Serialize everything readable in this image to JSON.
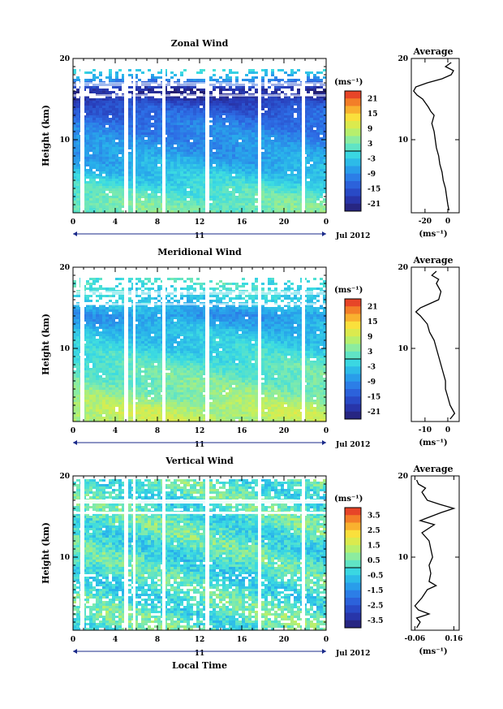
{
  "figure": {
    "x_axis_title": "Local Time",
    "date_label": "Jul 2012",
    "day_label": "11",
    "y_axis_title": "Height (km)",
    "unit_label": "(ms⁻¹)",
    "average_title": "Average"
  },
  "chart_data": [
    {
      "type": "heatmap",
      "title": "Zonal Wind",
      "xlabel": "Local Time",
      "ylabel": "Height (km)",
      "x_ticks": [
        "0",
        "4",
        "8",
        "12",
        "16",
        "20",
        "0"
      ],
      "y_ticks": [
        "20",
        "10"
      ],
      "xlim": [
        0,
        24
      ],
      "ylim": [
        1,
        20
      ],
      "colorbar": {
        "label": "(ms⁻¹)",
        "ticks": [
          "21",
          "15",
          "9",
          "3",
          "-3",
          "-9",
          "-15",
          "-21"
        ],
        "range": [
          -24,
          24
        ]
      },
      "field_summary": [
        {
          "height_km": 2,
          "value": 3
        },
        {
          "height_km": 4,
          "value": 0
        },
        {
          "height_km": 6,
          "value": -4
        },
        {
          "height_km": 8,
          "value": -7
        },
        {
          "height_km": 10,
          "value": -9
        },
        {
          "height_km": 12,
          "value": -11
        },
        {
          "height_km": 14,
          "value": -15
        },
        {
          "height_km": 16,
          "value": -22
        },
        {
          "height_km": 17.5,
          "value": -8
        },
        {
          "height_km": 19,
          "value": 2
        }
      ],
      "average_profile": {
        "xlabel": "(ms⁻¹)",
        "x_ticks": [
          "-20",
          "0"
        ],
        "xlim": [
          -32,
          10
        ],
        "y_ticks": [
          "20",
          "10"
        ],
        "points": [
          {
            "height_km": 1.3,
            "value": 1
          },
          {
            "height_km": 2,
            "value": 0
          },
          {
            "height_km": 3,
            "value": -1
          },
          {
            "height_km": 4,
            "value": -2
          },
          {
            "height_km": 5,
            "value": -4
          },
          {
            "height_km": 6,
            "value": -5
          },
          {
            "height_km": 7,
            "value": -7
          },
          {
            "height_km": 8,
            "value": -8
          },
          {
            "height_km": 9,
            "value": -10
          },
          {
            "height_km": 10,
            "value": -11
          },
          {
            "height_km": 11,
            "value": -12
          },
          {
            "height_km": 12,
            "value": -14
          },
          {
            "height_km": 13,
            "value": -12
          },
          {
            "height_km": 13.5,
            "value": -15
          },
          {
            "height_km": 14,
            "value": -17
          },
          {
            "height_km": 15,
            "value": -22
          },
          {
            "height_km": 15.5,
            "value": -27
          },
          {
            "height_km": 16,
            "value": -30
          },
          {
            "height_km": 16.5,
            "value": -28
          },
          {
            "height_km": 17,
            "value": -18
          },
          {
            "height_km": 17.5,
            "value": -5
          },
          {
            "height_km": 18,
            "value": 3
          },
          {
            "height_km": 18.5,
            "value": 5
          },
          {
            "height_km": 19,
            "value": -2
          },
          {
            "height_km": 19.5,
            "value": 3
          }
        ]
      }
    },
    {
      "type": "heatmap",
      "title": "Meridional Wind",
      "xlabel": "Local Time",
      "ylabel": "Height (km)",
      "x_ticks": [
        "0",
        "4",
        "8",
        "12",
        "16",
        "20",
        "0"
      ],
      "y_ticks": [
        "20",
        "10"
      ],
      "xlim": [
        0,
        24
      ],
      "ylim": [
        1,
        20
      ],
      "colorbar": {
        "label": "(ms⁻¹)",
        "ticks": [
          "21",
          "15",
          "9",
          "3",
          "-3",
          "-9",
          "-15",
          "-21"
        ],
        "range": [
          -24,
          24
        ]
      },
      "field_summary": [
        {
          "height_km": 2,
          "value": 8
        },
        {
          "height_km": 3,
          "value": 7
        },
        {
          "height_km": 4,
          "value": 5
        },
        {
          "height_km": 6,
          "value": 3
        },
        {
          "height_km": 8,
          "value": 1
        },
        {
          "height_km": 10,
          "value": -2
        },
        {
          "height_km": 12,
          "value": -4
        },
        {
          "height_km": 14,
          "value": -8
        },
        {
          "height_km": 16,
          "value": -3
        },
        {
          "height_km": 18,
          "value": 0
        },
        {
          "height_km": 19,
          "value": 1
        }
      ],
      "average_profile": {
        "xlabel": "(ms⁻¹)",
        "x_ticks": [
          "-10",
          "0"
        ],
        "xlim": [
          -16,
          5
        ],
        "y_ticks": [
          "20",
          "10"
        ],
        "points": [
          {
            "height_km": 1.3,
            "value": 1
          },
          {
            "height_km": 2,
            "value": 3
          },
          {
            "height_km": 2.5,
            "value": 2
          },
          {
            "height_km": 3,
            "value": 1
          },
          {
            "height_km": 4,
            "value": 0
          },
          {
            "height_km": 5,
            "value": -1
          },
          {
            "height_km": 6,
            "value": -1
          },
          {
            "height_km": 7,
            "value": -2
          },
          {
            "height_km": 8,
            "value": -3
          },
          {
            "height_km": 9,
            "value": -4
          },
          {
            "height_km": 10,
            "value": -5
          },
          {
            "height_km": 11,
            "value": -6
          },
          {
            "height_km": 12,
            "value": -8
          },
          {
            "height_km": 13,
            "value": -9
          },
          {
            "height_km": 14,
            "value": -12
          },
          {
            "height_km": 14.5,
            "value": -14
          },
          {
            "height_km": 15,
            "value": -12
          },
          {
            "height_km": 15.5,
            "value": -8
          },
          {
            "height_km": 16,
            "value": -4
          },
          {
            "height_km": 17,
            "value": -3
          },
          {
            "height_km": 18,
            "value": -5
          },
          {
            "height_km": 18.5,
            "value": -4
          },
          {
            "height_km": 19,
            "value": -7
          },
          {
            "height_km": 19.5,
            "value": -5
          }
        ]
      }
    },
    {
      "type": "heatmap",
      "title": "Vertical Wind",
      "xlabel": "Local Time",
      "ylabel": "Height (km)",
      "x_ticks": [
        "0",
        "4",
        "8",
        "12",
        "16",
        "20",
        "0"
      ],
      "y_ticks": [
        "20",
        "10"
      ],
      "xlim": [
        0,
        24
      ],
      "ylim": [
        1,
        20
      ],
      "colorbar": {
        "label": "(ms⁻¹)",
        "ticks": [
          "3.5",
          "2.5",
          "1.5",
          "0.5",
          "-0.5",
          "-1.5",
          "-2.5",
          "-3.5"
        ],
        "range": [
          -4,
          4
        ]
      },
      "field_summary": [
        {
          "height_km": 2,
          "value": 0.3
        },
        {
          "height_km": 5,
          "value": 0.1
        },
        {
          "height_km": 8,
          "value": 0.0
        },
        {
          "height_km": 11,
          "value": 0.1
        },
        {
          "height_km": 14,
          "value": 0.2
        },
        {
          "height_km": 17,
          "value": 0.1
        },
        {
          "height_km": 19,
          "value": 0.2
        }
      ],
      "average_profile": {
        "xlabel": "(ms⁻¹)",
        "x_ticks": [
          "-0.06",
          "0.16"
        ],
        "xlim": [
          -0.08,
          0.19
        ],
        "y_ticks": [
          "20",
          "10"
        ],
        "points": [
          {
            "height_km": 1.3,
            "value": -0.05
          },
          {
            "height_km": 2,
            "value": -0.03
          },
          {
            "height_km": 2.5,
            "value": -0.05
          },
          {
            "height_km": 3,
            "value": 0.02
          },
          {
            "height_km": 3.5,
            "value": -0.04
          },
          {
            "height_km": 4,
            "value": -0.06
          },
          {
            "height_km": 5,
            "value": -0.02
          },
          {
            "height_km": 6,
            "value": 0.01
          },
          {
            "height_km": 6.5,
            "value": 0.06
          },
          {
            "height_km": 7,
            "value": 0.02
          },
          {
            "height_km": 8,
            "value": 0.03
          },
          {
            "height_km": 9,
            "value": 0.02
          },
          {
            "height_km": 10,
            "value": 0.04
          },
          {
            "height_km": 11,
            "value": 0.03
          },
          {
            "height_km": 12,
            "value": 0.02
          },
          {
            "height_km": 13,
            "value": -0.02
          },
          {
            "height_km": 14,
            "value": 0.05
          },
          {
            "height_km": 14.5,
            "value": -0.03
          },
          {
            "height_km": 15,
            "value": 0.03
          },
          {
            "height_km": 15.5,
            "value": 0.09
          },
          {
            "height_km": 16,
            "value": 0.16
          },
          {
            "height_km": 16.5,
            "value": 0.08
          },
          {
            "height_km": 17,
            "value": 0.01
          },
          {
            "height_km": 18,
            "value": -0.02
          },
          {
            "height_km": 18.5,
            "value": 0.0
          },
          {
            "height_km": 19,
            "value": -0.04
          },
          {
            "height_km": 19.5,
            "value": -0.05
          }
        ]
      }
    }
  ]
}
